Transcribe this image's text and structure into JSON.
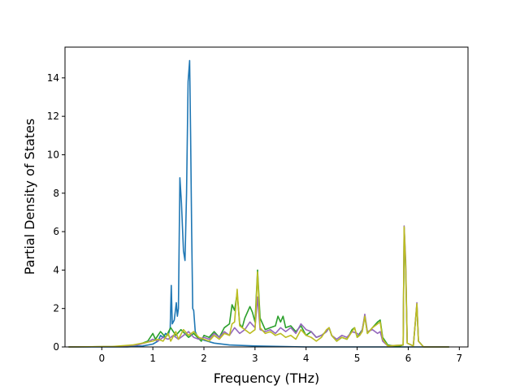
{
  "chart_data": {
    "type": "line",
    "title": "",
    "xlabel": "Frequency (THz)",
    "ylabel": "Partial Density of States",
    "xlim": [
      -0.72,
      7.17
    ],
    "ylim": [
      0,
      15.6
    ],
    "xticks": [
      0,
      1,
      2,
      3,
      4,
      5,
      6,
      7
    ],
    "yticks": [
      0,
      2,
      4,
      6,
      8,
      10,
      12,
      14
    ],
    "grid": false,
    "legend": "none",
    "series": [
      {
        "color": "#1f77b4",
        "points": [
          [
            -0.65,
            0
          ],
          [
            0.5,
            0
          ],
          [
            0.8,
            0.05
          ],
          [
            1.0,
            0.15
          ],
          [
            1.1,
            0.3
          ],
          [
            1.15,
            0.6
          ],
          [
            1.2,
            0.5
          ],
          [
            1.25,
            0.7
          ],
          [
            1.3,
            0.6
          ],
          [
            1.34,
            1.0
          ],
          [
            1.36,
            3.2
          ],
          [
            1.38,
            1.2
          ],
          [
            1.42,
            1.4
          ],
          [
            1.46,
            2.3
          ],
          [
            1.48,
            1.6
          ],
          [
            1.5,
            2.0
          ],
          [
            1.53,
            8.8
          ],
          [
            1.56,
            7.5
          ],
          [
            1.6,
            5.0
          ],
          [
            1.63,
            4.5
          ],
          [
            1.66,
            8.0
          ],
          [
            1.69,
            13.8
          ],
          [
            1.72,
            14.9
          ],
          [
            1.74,
            11.0
          ],
          [
            1.76,
            6.0
          ],
          [
            1.78,
            2.0
          ],
          [
            1.8,
            1.9
          ],
          [
            1.83,
            0.8
          ],
          [
            1.88,
            0.5
          ],
          [
            2.0,
            0.35
          ],
          [
            2.2,
            0.2
          ],
          [
            2.5,
            0.1
          ],
          [
            3.0,
            0.05
          ],
          [
            4.0,
            0
          ],
          [
            6.8,
            0
          ]
        ]
      },
      {
        "color": "#2ca02c",
        "points": [
          [
            -0.65,
            0
          ],
          [
            0.3,
            0.02
          ],
          [
            0.7,
            0.1
          ],
          [
            0.9,
            0.3
          ],
          [
            1.0,
            0.7
          ],
          [
            1.05,
            0.4
          ],
          [
            1.15,
            0.8
          ],
          [
            1.25,
            0.5
          ],
          [
            1.35,
            1.0
          ],
          [
            1.45,
            0.6
          ],
          [
            1.55,
            0.9
          ],
          [
            1.7,
            0.5
          ],
          [
            1.8,
            0.7
          ],
          [
            1.95,
            0.3
          ],
          [
            2.0,
            0.6
          ],
          [
            2.1,
            0.5
          ],
          [
            2.2,
            0.8
          ],
          [
            2.3,
            0.5
          ],
          [
            2.4,
            1.0
          ],
          [
            2.5,
            1.2
          ],
          [
            2.55,
            2.2
          ],
          [
            2.6,
            1.9
          ],
          [
            2.65,
            2.8
          ],
          [
            2.7,
            1.2
          ],
          [
            2.75,
            1.0
          ],
          [
            2.8,
            1.5
          ],
          [
            2.9,
            2.1
          ],
          [
            2.95,
            1.8
          ],
          [
            3.0,
            1.3
          ],
          [
            3.05,
            4.0
          ],
          [
            3.1,
            1.5
          ],
          [
            3.2,
            0.9
          ],
          [
            3.3,
            1.0
          ],
          [
            3.4,
            1.1
          ],
          [
            3.45,
            1.6
          ],
          [
            3.5,
            1.3
          ],
          [
            3.55,
            1.6
          ],
          [
            3.6,
            1.0
          ],
          [
            3.7,
            1.1
          ],
          [
            3.8,
            0.8
          ],
          [
            3.9,
            1.1
          ],
          [
            4.0,
            0.6
          ],
          [
            4.1,
            0.8
          ],
          [
            4.2,
            0.5
          ],
          [
            4.3,
            0.6
          ],
          [
            4.4,
            0.8
          ],
          [
            4.45,
            1.0
          ],
          [
            4.5,
            0.6
          ],
          [
            4.6,
            0.3
          ],
          [
            4.7,
            0.5
          ],
          [
            4.8,
            0.4
          ],
          [
            4.9,
            0.9
          ],
          [
            4.95,
            1.0
          ],
          [
            5.0,
            0.5
          ],
          [
            5.05,
            0.7
          ],
          [
            5.1,
            0.9
          ],
          [
            5.15,
            1.6
          ],
          [
            5.2,
            0.7
          ],
          [
            5.3,
            1.0
          ],
          [
            5.4,
            1.3
          ],
          [
            5.45,
            1.4
          ],
          [
            5.5,
            0.5
          ],
          [
            5.6,
            0.1
          ],
          [
            5.8,
            0.02
          ],
          [
            5.9,
            0.1
          ],
          [
            5.92,
            6.2
          ],
          [
            5.95,
            4.0
          ],
          [
            5.98,
            0.2
          ],
          [
            6.1,
            0.05
          ],
          [
            6.17,
            2.2
          ],
          [
            6.2,
            0.3
          ],
          [
            6.3,
            0
          ],
          [
            6.8,
            0
          ]
        ]
      },
      {
        "color": "#9467bd",
        "points": [
          [
            -0.65,
            0
          ],
          [
            0.3,
            0.02
          ],
          [
            0.7,
            0.1
          ],
          [
            0.9,
            0.25
          ],
          [
            1.0,
            0.4
          ],
          [
            1.1,
            0.3
          ],
          [
            1.2,
            0.5
          ],
          [
            1.3,
            0.4
          ],
          [
            1.4,
            0.6
          ],
          [
            1.5,
            0.4
          ],
          [
            1.6,
            0.6
          ],
          [
            1.7,
            0.8
          ],
          [
            1.8,
            0.5
          ],
          [
            1.9,
            0.4
          ],
          [
            2.0,
            0.5
          ],
          [
            2.1,
            0.4
          ],
          [
            2.2,
            0.7
          ],
          [
            2.3,
            0.5
          ],
          [
            2.4,
            0.8
          ],
          [
            2.5,
            0.6
          ],
          [
            2.6,
            1.0
          ],
          [
            2.7,
            0.7
          ],
          [
            2.8,
            0.9
          ],
          [
            2.9,
            1.3
          ],
          [
            3.0,
            1.0
          ],
          [
            3.05,
            2.6
          ],
          [
            3.1,
            0.9
          ],
          [
            3.2,
            0.8
          ],
          [
            3.3,
            0.9
          ],
          [
            3.4,
            0.7
          ],
          [
            3.5,
            1.0
          ],
          [
            3.6,
            0.8
          ],
          [
            3.7,
            1.0
          ],
          [
            3.8,
            0.7
          ],
          [
            3.9,
            1.2
          ],
          [
            4.0,
            0.9
          ],
          [
            4.1,
            0.8
          ],
          [
            4.2,
            0.5
          ],
          [
            4.3,
            0.6
          ],
          [
            4.4,
            0.8
          ],
          [
            4.45,
            1.0
          ],
          [
            4.5,
            0.6
          ],
          [
            4.6,
            0.4
          ],
          [
            4.7,
            0.6
          ],
          [
            4.8,
            0.5
          ],
          [
            4.9,
            0.8
          ],
          [
            5.0,
            0.7
          ],
          [
            5.05,
            0.6
          ],
          [
            5.1,
            0.9
          ],
          [
            5.15,
            1.7
          ],
          [
            5.2,
            0.8
          ],
          [
            5.3,
            0.9
          ],
          [
            5.4,
            0.7
          ],
          [
            5.45,
            0.8
          ],
          [
            5.5,
            0.3
          ],
          [
            5.6,
            0.05
          ],
          [
            5.9,
            0.1
          ],
          [
            5.92,
            6.3
          ],
          [
            5.95,
            4.5
          ],
          [
            5.98,
            0.2
          ],
          [
            6.1,
            0.05
          ],
          [
            6.17,
            2.3
          ],
          [
            6.2,
            0.3
          ],
          [
            6.3,
            0
          ],
          [
            6.8,
            0
          ]
        ]
      },
      {
        "color": "#bcbd22",
        "points": [
          [
            -0.65,
            0
          ],
          [
            0.2,
            0.02
          ],
          [
            0.6,
            0.1
          ],
          [
            0.8,
            0.2
          ],
          [
            0.9,
            0.25
          ],
          [
            1.0,
            0.3
          ],
          [
            1.1,
            0.4
          ],
          [
            1.2,
            0.3
          ],
          [
            1.3,
            0.7
          ],
          [
            1.35,
            0.3
          ],
          [
            1.45,
            0.8
          ],
          [
            1.5,
            0.4
          ],
          [
            1.6,
            0.9
          ],
          [
            1.7,
            0.6
          ],
          [
            1.8,
            0.8
          ],
          [
            1.9,
            0.5
          ],
          [
            2.0,
            0.4
          ],
          [
            2.1,
            0.3
          ],
          [
            2.2,
            0.6
          ],
          [
            2.3,
            0.4
          ],
          [
            2.4,
            0.7
          ],
          [
            2.5,
            0.6
          ],
          [
            2.55,
            1.2
          ],
          [
            2.6,
            1.3
          ],
          [
            2.65,
            3.0
          ],
          [
            2.7,
            1.1
          ],
          [
            2.8,
            0.9
          ],
          [
            2.9,
            0.7
          ],
          [
            3.0,
            0.9
          ],
          [
            3.05,
            3.9
          ],
          [
            3.1,
            1.0
          ],
          [
            3.2,
            0.7
          ],
          [
            3.3,
            0.8
          ],
          [
            3.4,
            0.6
          ],
          [
            3.5,
            0.7
          ],
          [
            3.6,
            0.5
          ],
          [
            3.7,
            0.6
          ],
          [
            3.8,
            0.4
          ],
          [
            3.9,
            0.9
          ],
          [
            4.0,
            0.6
          ],
          [
            4.1,
            0.5
          ],
          [
            4.2,
            0.3
          ],
          [
            4.3,
            0.5
          ],
          [
            4.4,
            0.9
          ],
          [
            4.45,
            1.0
          ],
          [
            4.5,
            0.6
          ],
          [
            4.6,
            0.3
          ],
          [
            4.7,
            0.5
          ],
          [
            4.8,
            0.4
          ],
          [
            4.9,
            0.8
          ],
          [
            4.95,
            1.0
          ],
          [
            5.0,
            0.5
          ],
          [
            5.05,
            0.6
          ],
          [
            5.1,
            0.8
          ],
          [
            5.15,
            1.6
          ],
          [
            5.2,
            0.7
          ],
          [
            5.3,
            1.0
          ],
          [
            5.4,
            1.2
          ],
          [
            5.45,
            1.3
          ],
          [
            5.5,
            0.4
          ],
          [
            5.6,
            0.05
          ],
          [
            5.9,
            0.1
          ],
          [
            5.92,
            6.25
          ],
          [
            5.95,
            4.2
          ],
          [
            5.98,
            0.2
          ],
          [
            6.1,
            0.05
          ],
          [
            6.17,
            2.25
          ],
          [
            6.2,
            0.3
          ],
          [
            6.3,
            0
          ],
          [
            6.8,
            0
          ]
        ]
      }
    ]
  }
}
